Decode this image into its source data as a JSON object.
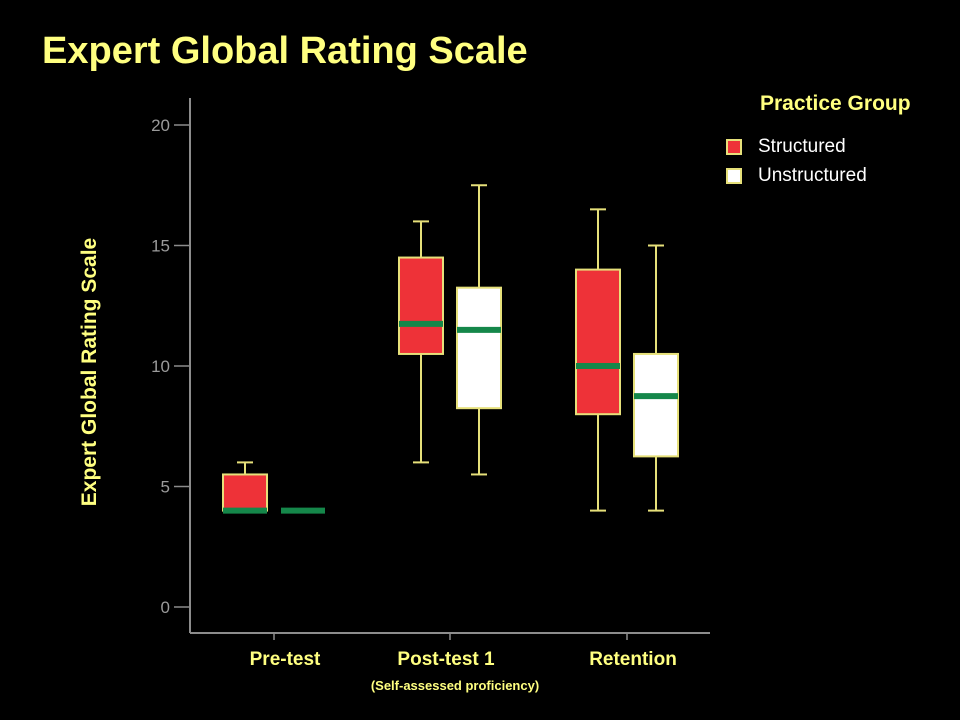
{
  "slide_title": "Expert Global Rating Scale",
  "legend": {
    "title": "Practice Group",
    "items": [
      {
        "label": "Structured",
        "color": "#ee3238"
      },
      {
        "label": "Unstructured",
        "color": "#ffffff"
      }
    ]
  },
  "colors": {
    "accent_text": "#ffff80",
    "whisker": "#e6e07a",
    "median": "#15874a",
    "axis": "#8c8c8c",
    "background": "#000000"
  },
  "chart_data": {
    "type": "box",
    "title": "",
    "ylabel": "Expert Global Rating Scale",
    "xlabel": "",
    "ylim": [
      0,
      20
    ],
    "yticks": [
      0,
      5,
      10,
      15,
      20
    ],
    "categories": [
      "Pre-test",
      "Post-test 1",
      "Retention"
    ],
    "category_sublabels": [
      "",
      "(Self-assessed proficiency)",
      ""
    ],
    "grid": false,
    "legend_position": "top-right",
    "series": [
      {
        "name": "Structured",
        "boxes": [
          {
            "min": 4,
            "q1": 4,
            "median": 4,
            "q3": 5.5,
            "max": 6
          },
          {
            "min": 6,
            "q1": 10.5,
            "median": 11.75,
            "q3": 14.5,
            "max": 16
          },
          {
            "min": 4,
            "q1": 8,
            "median": 10,
            "q3": 14,
            "max": 16.5
          }
        ]
      },
      {
        "name": "Unstructured",
        "boxes": [
          {
            "min": 4,
            "q1": 4,
            "median": 4,
            "q3": 4,
            "max": 4
          },
          {
            "min": 5.5,
            "q1": 8.25,
            "median": 11.5,
            "q3": 13.25,
            "max": 17.5
          },
          {
            "min": 4,
            "q1": 6.25,
            "median": 8.75,
            "q3": 10.5,
            "max": 15
          }
        ]
      }
    ]
  }
}
